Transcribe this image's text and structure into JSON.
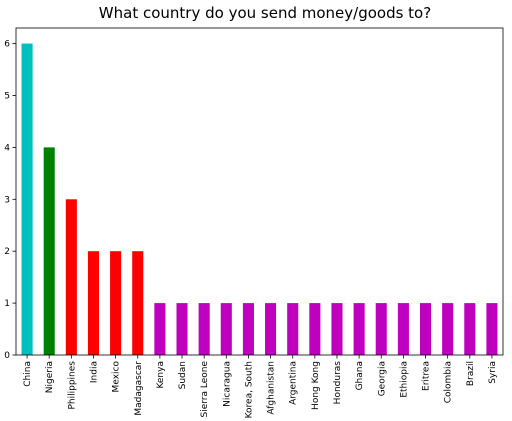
{
  "chart_data": {
    "type": "bar",
    "title": "What country do you send money/goods to?",
    "xlabel": "",
    "ylabel": "",
    "ylim": [
      0,
      6.3
    ],
    "yticks": [
      0,
      1,
      2,
      3,
      4,
      5,
      6
    ],
    "grid": false,
    "legend": "none",
    "categories": [
      "China",
      "Nigeria",
      "Philippines",
      "India",
      "Mexico",
      "Madagascar",
      "Kenya",
      "Sudan",
      "Sierra Leone",
      "Nicaragua",
      "Korea, South",
      "Afghanistan",
      "Argentina",
      "Hong Kong",
      "Honduras",
      "Ghana",
      "Georgia",
      "Ethiopia",
      "Eritrea",
      "Colombia",
      "Brazil",
      "Syria"
    ],
    "values": [
      6,
      4,
      3,
      2,
      2,
      2,
      1,
      1,
      1,
      1,
      1,
      1,
      1,
      1,
      1,
      1,
      1,
      1,
      1,
      1,
      1,
      1
    ],
    "colors": [
      "#00bfbf",
      "#008000",
      "#ff0000",
      "#ff0000",
      "#ff0000",
      "#ff0000",
      "#bf00bf",
      "#bf00bf",
      "#bf00bf",
      "#bf00bf",
      "#bf00bf",
      "#bf00bf",
      "#bf00bf",
      "#bf00bf",
      "#bf00bf",
      "#bf00bf",
      "#bf00bf",
      "#bf00bf",
      "#bf00bf",
      "#bf00bf",
      "#bf00bf",
      "#bf00bf"
    ]
  }
}
